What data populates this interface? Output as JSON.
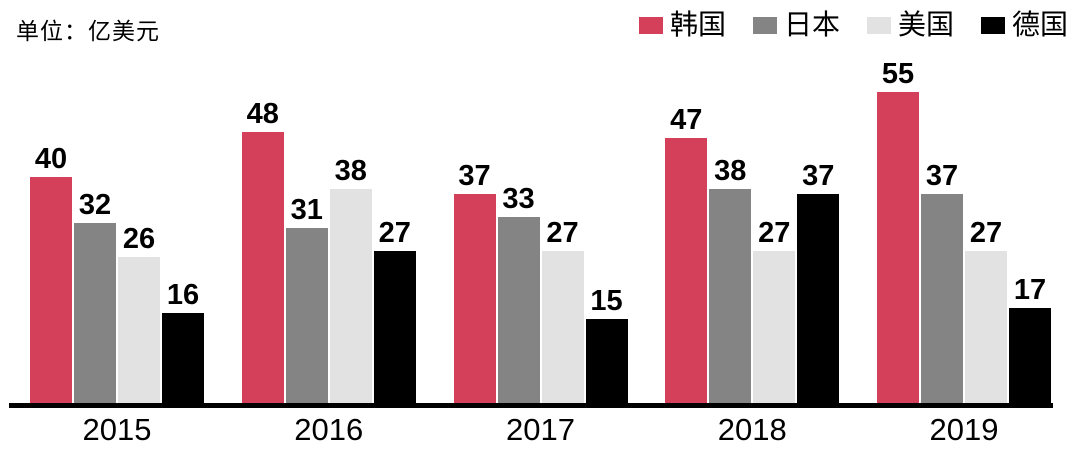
{
  "unit_label": "单位：亿美元",
  "chart_data": {
    "type": "bar",
    "title": "",
    "unit_label": "单位：亿美元",
    "categories": [
      "2015",
      "2016",
      "2017",
      "2018",
      "2019"
    ],
    "series": [
      {
        "name": "韩国",
        "color": "#D4405A",
        "values": [
          40,
          48,
          37,
          47,
          55
        ]
      },
      {
        "name": "日本",
        "color": "#848484",
        "values": [
          32,
          31,
          33,
          38,
          37
        ]
      },
      {
        "name": "美国",
        "color": "#E3E2E2",
        "values": [
          26,
          38,
          27,
          27,
          27
        ]
      },
      {
        "name": "德国",
        "color": "#000000",
        "values": [
          16,
          27,
          15,
          37,
          17
        ]
      }
    ],
    "ylim": [
      0,
      60
    ],
    "grid": false,
    "legend_position": "top-right",
    "value_labels": true,
    "axis_color": "#000000",
    "background": "#FFFFFF"
  }
}
